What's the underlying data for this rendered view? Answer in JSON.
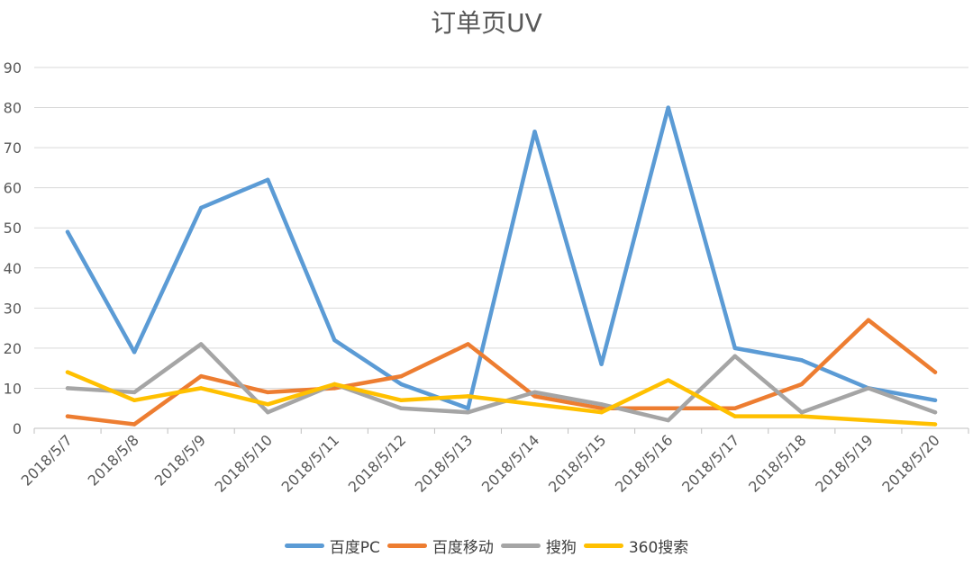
{
  "chart_data": {
    "type": "line",
    "title": "订单页UV",
    "xlabel": "",
    "ylabel": "",
    "ylim": [
      0,
      90
    ],
    "yticks": [
      "0",
      "10",
      "20",
      "30",
      "40",
      "50",
      "60",
      "70",
      "80",
      "90"
    ],
    "categories": [
      "2018/5/7",
      "2018/5/8",
      "2018/5/9",
      "2018/5/10",
      "2018/5/11",
      "2018/5/12",
      "2018/5/13",
      "2018/5/14",
      "2018/5/15",
      "2018/5/16",
      "2018/5/17",
      "2018/5/18",
      "2018/5/19",
      "2018/5/20"
    ],
    "grid": true,
    "legend_position": "bottom",
    "series": [
      {
        "name": "百度PC",
        "color": "#5B9BD5",
        "values": [
          49,
          19,
          55,
          62,
          22,
          11,
          5,
          74,
          16,
          80,
          20,
          17,
          10,
          7
        ]
      },
      {
        "name": "百度移动",
        "color": "#ED7D31",
        "values": [
          3,
          1,
          13,
          9,
          10,
          13,
          21,
          8,
          5,
          5,
          5,
          11,
          27,
          14
        ]
      },
      {
        "name": "搜狗",
        "color": "#A5A5A5",
        "values": [
          10,
          9,
          21,
          4,
          11,
          5,
          4,
          9,
          6,
          2,
          18,
          4,
          10,
          4
        ]
      },
      {
        "name": "360搜索",
        "color": "#FFC000",
        "values": [
          14,
          7,
          10,
          6,
          11,
          7,
          8,
          6,
          4,
          12,
          3,
          3,
          2,
          1
        ]
      }
    ]
  }
}
